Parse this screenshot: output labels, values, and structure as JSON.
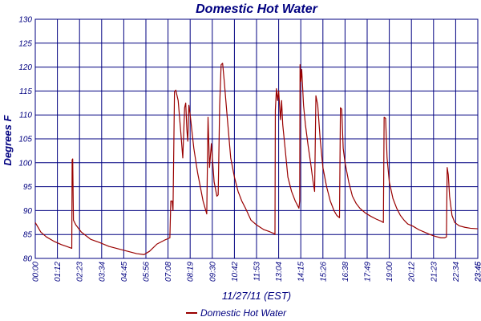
{
  "chart_data": {
    "type": "line",
    "title": "Domestic Hot Water",
    "xlabel": "11/27/11 (EST)",
    "ylabel": "Degrees F",
    "ylim": [
      80,
      130
    ],
    "yticks": [
      80,
      85,
      90,
      95,
      100,
      105,
      110,
      115,
      120,
      125,
      130
    ],
    "xlim": [
      0,
      24
    ],
    "x_unit": "hours",
    "xtick_labels": [
      "00:00",
      "01:12",
      "02:23",
      "03:34",
      "04:45",
      "05:56",
      "07:08",
      "08:19",
      "09:30",
      "10:42",
      "11:53",
      "13:04",
      "14:15",
      "15:26",
      "16:38",
      "17:49",
      "19:00",
      "20:12",
      "21:23",
      "22:34",
      "23:45",
      "23:46"
    ],
    "grid": true,
    "legend_position": "bottom-center",
    "series": [
      {
        "name": "Domestic Hot Water",
        "color": "#990000",
        "points": [
          [
            0.0,
            87.5
          ],
          [
            0.3,
            85.5
          ],
          [
            0.6,
            84.5
          ],
          [
            1.0,
            83.6
          ],
          [
            1.4,
            82.9
          ],
          [
            1.7,
            82.5
          ],
          [
            1.98,
            82.1
          ],
          [
            2.0,
            100.6
          ],
          [
            2.03,
            100.8
          ],
          [
            2.07,
            88.0
          ],
          [
            2.2,
            87.0
          ],
          [
            2.5,
            85.5
          ],
          [
            3.0,
            84.0
          ],
          [
            3.5,
            83.3
          ],
          [
            4.0,
            82.5
          ],
          [
            4.5,
            82.0
          ],
          [
            5.0,
            81.5
          ],
          [
            5.5,
            81.0
          ],
          [
            5.9,
            80.8
          ],
          [
            6.2,
            81.5
          ],
          [
            6.6,
            83.0
          ],
          [
            7.0,
            83.8
          ],
          [
            7.3,
            84.3
          ],
          [
            7.35,
            92.0
          ],
          [
            7.42,
            92.0
          ],
          [
            7.47,
            90.0
          ],
          [
            7.55,
            114.8
          ],
          [
            7.62,
            115.2
          ],
          [
            7.75,
            113.0
          ],
          [
            7.9,
            106.0
          ],
          [
            8.0,
            101.0
          ],
          [
            8.1,
            111.5
          ],
          [
            8.16,
            112.5
          ],
          [
            8.22,
            107.0
          ],
          [
            8.27,
            104.5
          ],
          [
            8.33,
            112.0
          ],
          [
            8.4,
            110.0
          ],
          [
            8.6,
            103.0
          ],
          [
            8.8,
            98.0
          ],
          [
            9.1,
            92.0
          ],
          [
            9.3,
            89.3
          ],
          [
            9.37,
            109.5
          ],
          [
            9.45,
            99.0
          ],
          [
            9.55,
            104.0
          ],
          [
            9.7,
            96.0
          ],
          [
            9.85,
            93.0
          ],
          [
            9.92,
            93.3
          ],
          [
            10.0,
            112.0
          ],
          [
            10.08,
            120.5
          ],
          [
            10.16,
            120.8
          ],
          [
            10.25,
            117.0
          ],
          [
            10.4,
            110.0
          ],
          [
            10.6,
            101.0
          ],
          [
            10.8,
            97.0
          ],
          [
            11.0,
            94.0
          ],
          [
            11.2,
            92.0
          ],
          [
            11.4,
            90.5
          ],
          [
            11.7,
            88.0
          ],
          [
            12.0,
            87.0
          ],
          [
            12.4,
            86.0
          ],
          [
            12.7,
            85.6
          ],
          [
            12.95,
            85.2
          ],
          [
            13.0,
            85.0
          ],
          [
            13.02,
            111.0
          ],
          [
            13.08,
            115.5
          ],
          [
            13.14,
            113.0
          ],
          [
            13.2,
            115.0
          ],
          [
            13.3,
            109.0
          ],
          [
            13.36,
            113.0
          ],
          [
            13.42,
            108.0
          ],
          [
            13.55,
            103.0
          ],
          [
            13.7,
            97.0
          ],
          [
            13.9,
            94.0
          ],
          [
            14.1,
            92.0
          ],
          [
            14.3,
            90.5
          ],
          [
            14.34,
            92.0
          ],
          [
            14.36,
            120.5
          ],
          [
            14.4,
            117.0
          ],
          [
            14.45,
            119.5
          ],
          [
            14.55,
            112.0
          ],
          [
            14.65,
            108.0
          ],
          [
            14.8,
            103.5
          ],
          [
            14.95,
            99.5
          ],
          [
            15.05,
            96.5
          ],
          [
            15.15,
            94.0
          ],
          [
            15.22,
            114.0
          ],
          [
            15.32,
            112.0
          ],
          [
            15.45,
            105.0
          ],
          [
            15.6,
            99.0
          ],
          [
            15.8,
            95.0
          ],
          [
            16.0,
            92.0
          ],
          [
            16.2,
            90.0
          ],
          [
            16.35,
            89.0
          ],
          [
            16.5,
            88.5
          ],
          [
            16.55,
            111.5
          ],
          [
            16.62,
            111.2
          ],
          [
            16.7,
            103.0
          ],
          [
            16.8,
            100.0
          ],
          [
            17.0,
            96.0
          ],
          [
            17.2,
            93.0
          ],
          [
            17.4,
            91.5
          ],
          [
            17.6,
            90.5
          ],
          [
            17.9,
            89.5
          ],
          [
            18.2,
            88.8
          ],
          [
            18.5,
            88.2
          ],
          [
            18.75,
            87.8
          ],
          [
            18.88,
            87.5
          ],
          [
            18.92,
            109.5
          ],
          [
            19.0,
            109.3
          ],
          [
            19.08,
            101.0
          ],
          [
            19.2,
            96.0
          ],
          [
            19.4,
            92.5
          ],
          [
            19.6,
            90.5
          ],
          [
            19.8,
            89.0
          ],
          [
            20.0,
            88.0
          ],
          [
            20.2,
            87.2
          ],
          [
            20.5,
            86.7
          ],
          [
            20.8,
            86.0
          ],
          [
            21.1,
            85.5
          ],
          [
            21.4,
            85.0
          ],
          [
            21.7,
            84.6
          ],
          [
            22.0,
            84.3
          ],
          [
            22.2,
            84.3
          ],
          [
            22.3,
            84.5
          ],
          [
            22.34,
            99.0
          ],
          [
            22.4,
            97.5
          ],
          [
            22.47,
            93.0
          ],
          [
            22.6,
            89.0
          ],
          [
            22.75,
            87.5
          ],
          [
            23.0,
            86.8
          ],
          [
            23.3,
            86.5
          ],
          [
            23.6,
            86.3
          ],
          [
            24.0,
            86.2
          ]
        ]
      }
    ]
  }
}
